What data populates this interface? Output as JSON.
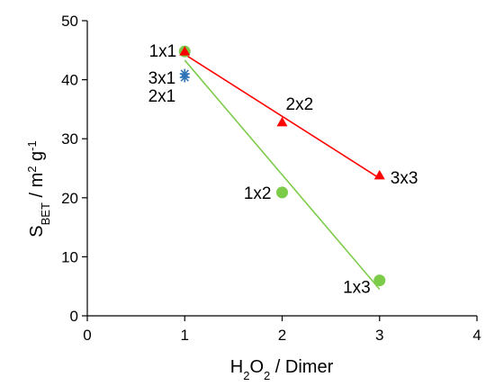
{
  "chart_data": {
    "type": "scatter",
    "xlabel": "H2O2 / Dimer",
    "ylabel": "SBET / m2 g-1",
    "xlim": [
      0,
      4
    ],
    "ylim": [
      0,
      50
    ],
    "xticks": [
      0,
      1,
      2,
      3,
      4
    ],
    "yticks": [
      0,
      10,
      20,
      30,
      40,
      50
    ],
    "grid": false,
    "legend": "none",
    "series": [
      {
        "marker": "triangle",
        "color": "#ff0000",
        "trendline": true,
        "points": [
          {
            "x": 1,
            "y": 44.8,
            "label": "1x1"
          },
          {
            "x": 2,
            "y": 32.8,
            "label": "2x2"
          },
          {
            "x": 3,
            "y": 23.8,
            "label": "3x3"
          }
        ]
      },
      {
        "marker": "circle",
        "color": "#7ccc4a",
        "trendline": true,
        "points": [
          {
            "x": 1,
            "y": 44.8,
            "label": "1x1"
          },
          {
            "x": 2,
            "y": 20.9,
            "label": "1x2"
          },
          {
            "x": 3,
            "y": 6.0,
            "label": "1x3"
          }
        ]
      },
      {
        "marker": "asterisk",
        "color": "#2e75b6",
        "trendline": false,
        "points": [
          {
            "x": 1,
            "y": 41.0,
            "label": "3x1"
          },
          {
            "x": 1,
            "y": 40.4,
            "label": "2x1"
          }
        ]
      }
    ]
  }
}
